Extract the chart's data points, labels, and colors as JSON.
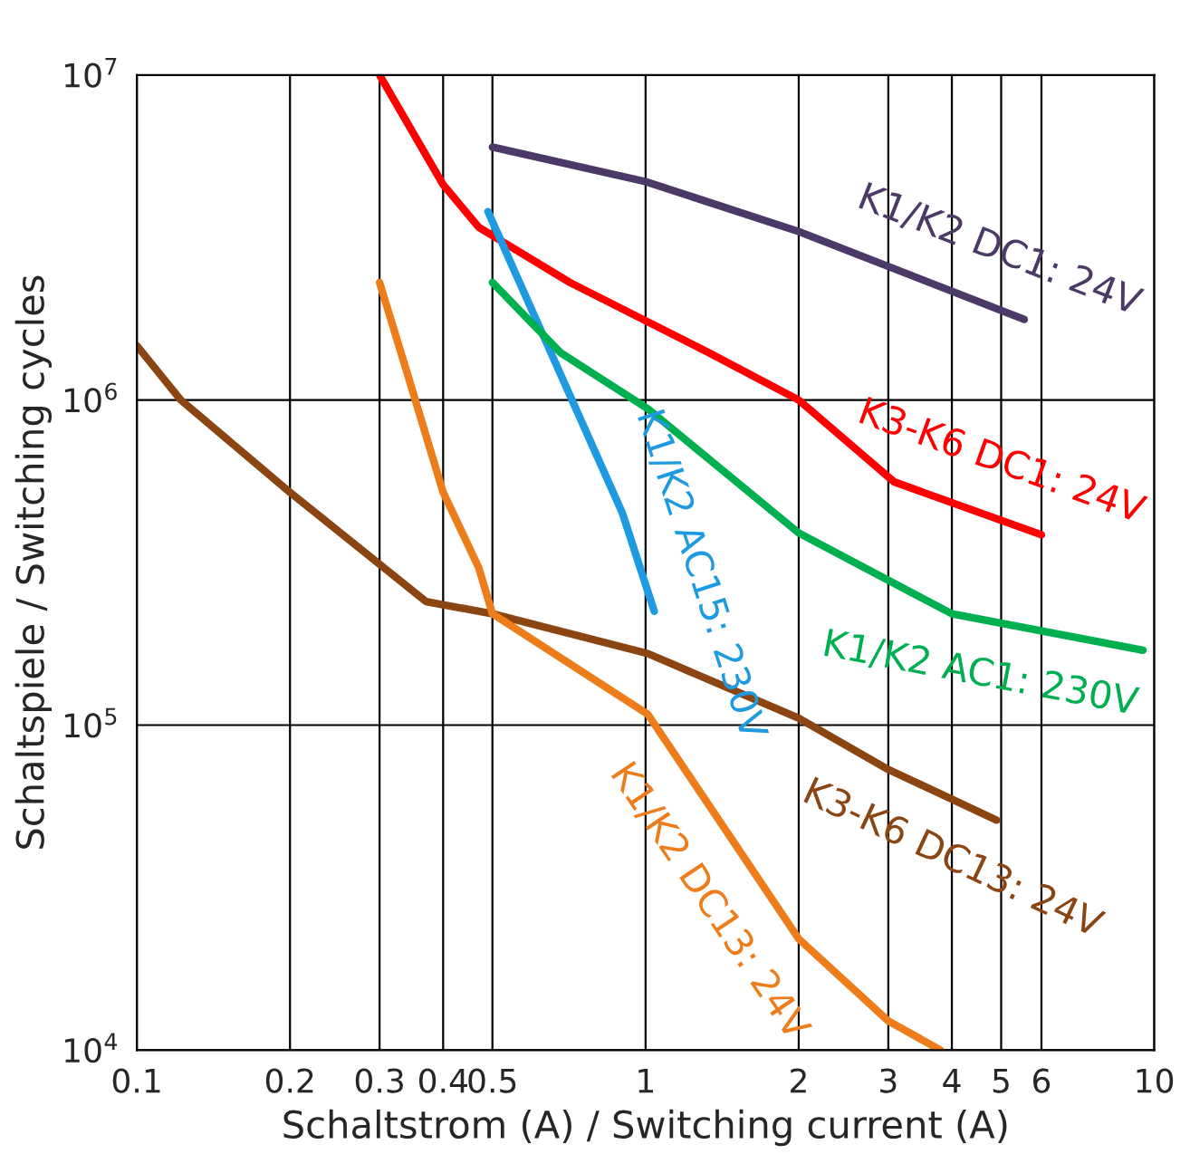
{
  "chart_data": {
    "type": "line",
    "xlabel": "Schaltstrom (A) / Switching current (A)",
    "ylabel": "Schaltspiele / Switching cycles",
    "log": "xy",
    "grid": true,
    "legend": false,
    "marker": "none",
    "line_style": "solid",
    "xlim": [
      0.1,
      10
    ],
    "ylim": [
      10000,
      10000000
    ],
    "xticks": [
      0.1,
      0.2,
      0.3,
      0.4,
      0.5,
      1,
      2,
      3,
      4,
      5,
      6,
      10
    ],
    "yticks": [
      {
        "value": 10000,
        "label": "10$^{4}$"
      },
      {
        "value": 100000,
        "label": "10$^{5}$"
      },
      {
        "value": 1000000,
        "label": "10$^{6}$"
      },
      {
        "value": 10000000,
        "label": "10$^{7}$"
      }
    ],
    "series": [
      {
        "name": "K1/K2 DC1: 24V",
        "color": "#4b3a67",
        "x": [
          0.5,
          1.0,
          2.0,
          5.55
        ],
        "values": [
          6000000,
          4700000,
          3300000,
          1770000
        ]
      },
      {
        "name": "K3-K6 DC1: 24V",
        "color": "#ff0000",
        "x": [
          0.3,
          0.4,
          0.47,
          0.71,
          1.33,
          2.0,
          3.08,
          6.0
        ],
        "values": [
          10000000,
          4600000,
          3400000,
          2300000,
          1400000,
          1000000,
          560000,
          385000
        ]
      },
      {
        "name": "K1/K2 AC15: 230V",
        "color": "#1e9be0",
        "x": [
          0.49,
          0.65,
          0.9,
          1.04
        ],
        "values": [
          3800000,
          1410000,
          450000,
          224000
        ]
      },
      {
        "name": "K1/K2 AC1: 230V",
        "color": "#00b050",
        "x": [
          0.5,
          0.68,
          1.01,
          2.0,
          4.0,
          9.5
        ],
        "values": [
          2300000,
          1400000,
          940000,
          390000,
          220000,
          170000
        ]
      },
      {
        "name": "K3-K6 DC13: 24V",
        "color": "#8b4513",
        "x": [
          0.1,
          0.122,
          0.2,
          0.37,
          0.5,
          1.01,
          2.0,
          3.0,
          4.9
        ],
        "values": [
          1470000,
          1000000,
          520000,
          240000,
          220000,
          166000,
          105000,
          73000,
          51000
        ]
      },
      {
        "name": "K1/K2 DC13: 24V",
        "color": "#ed7d1a",
        "x": [
          0.3,
          0.34,
          0.4,
          0.47,
          0.5,
          1.01,
          2.0,
          3.0,
          3.8
        ],
        "values": [
          2300000,
          1210000,
          520000,
          305000,
          220000,
          108000,
          22000,
          12300,
          10000
        ]
      }
    ]
  }
}
